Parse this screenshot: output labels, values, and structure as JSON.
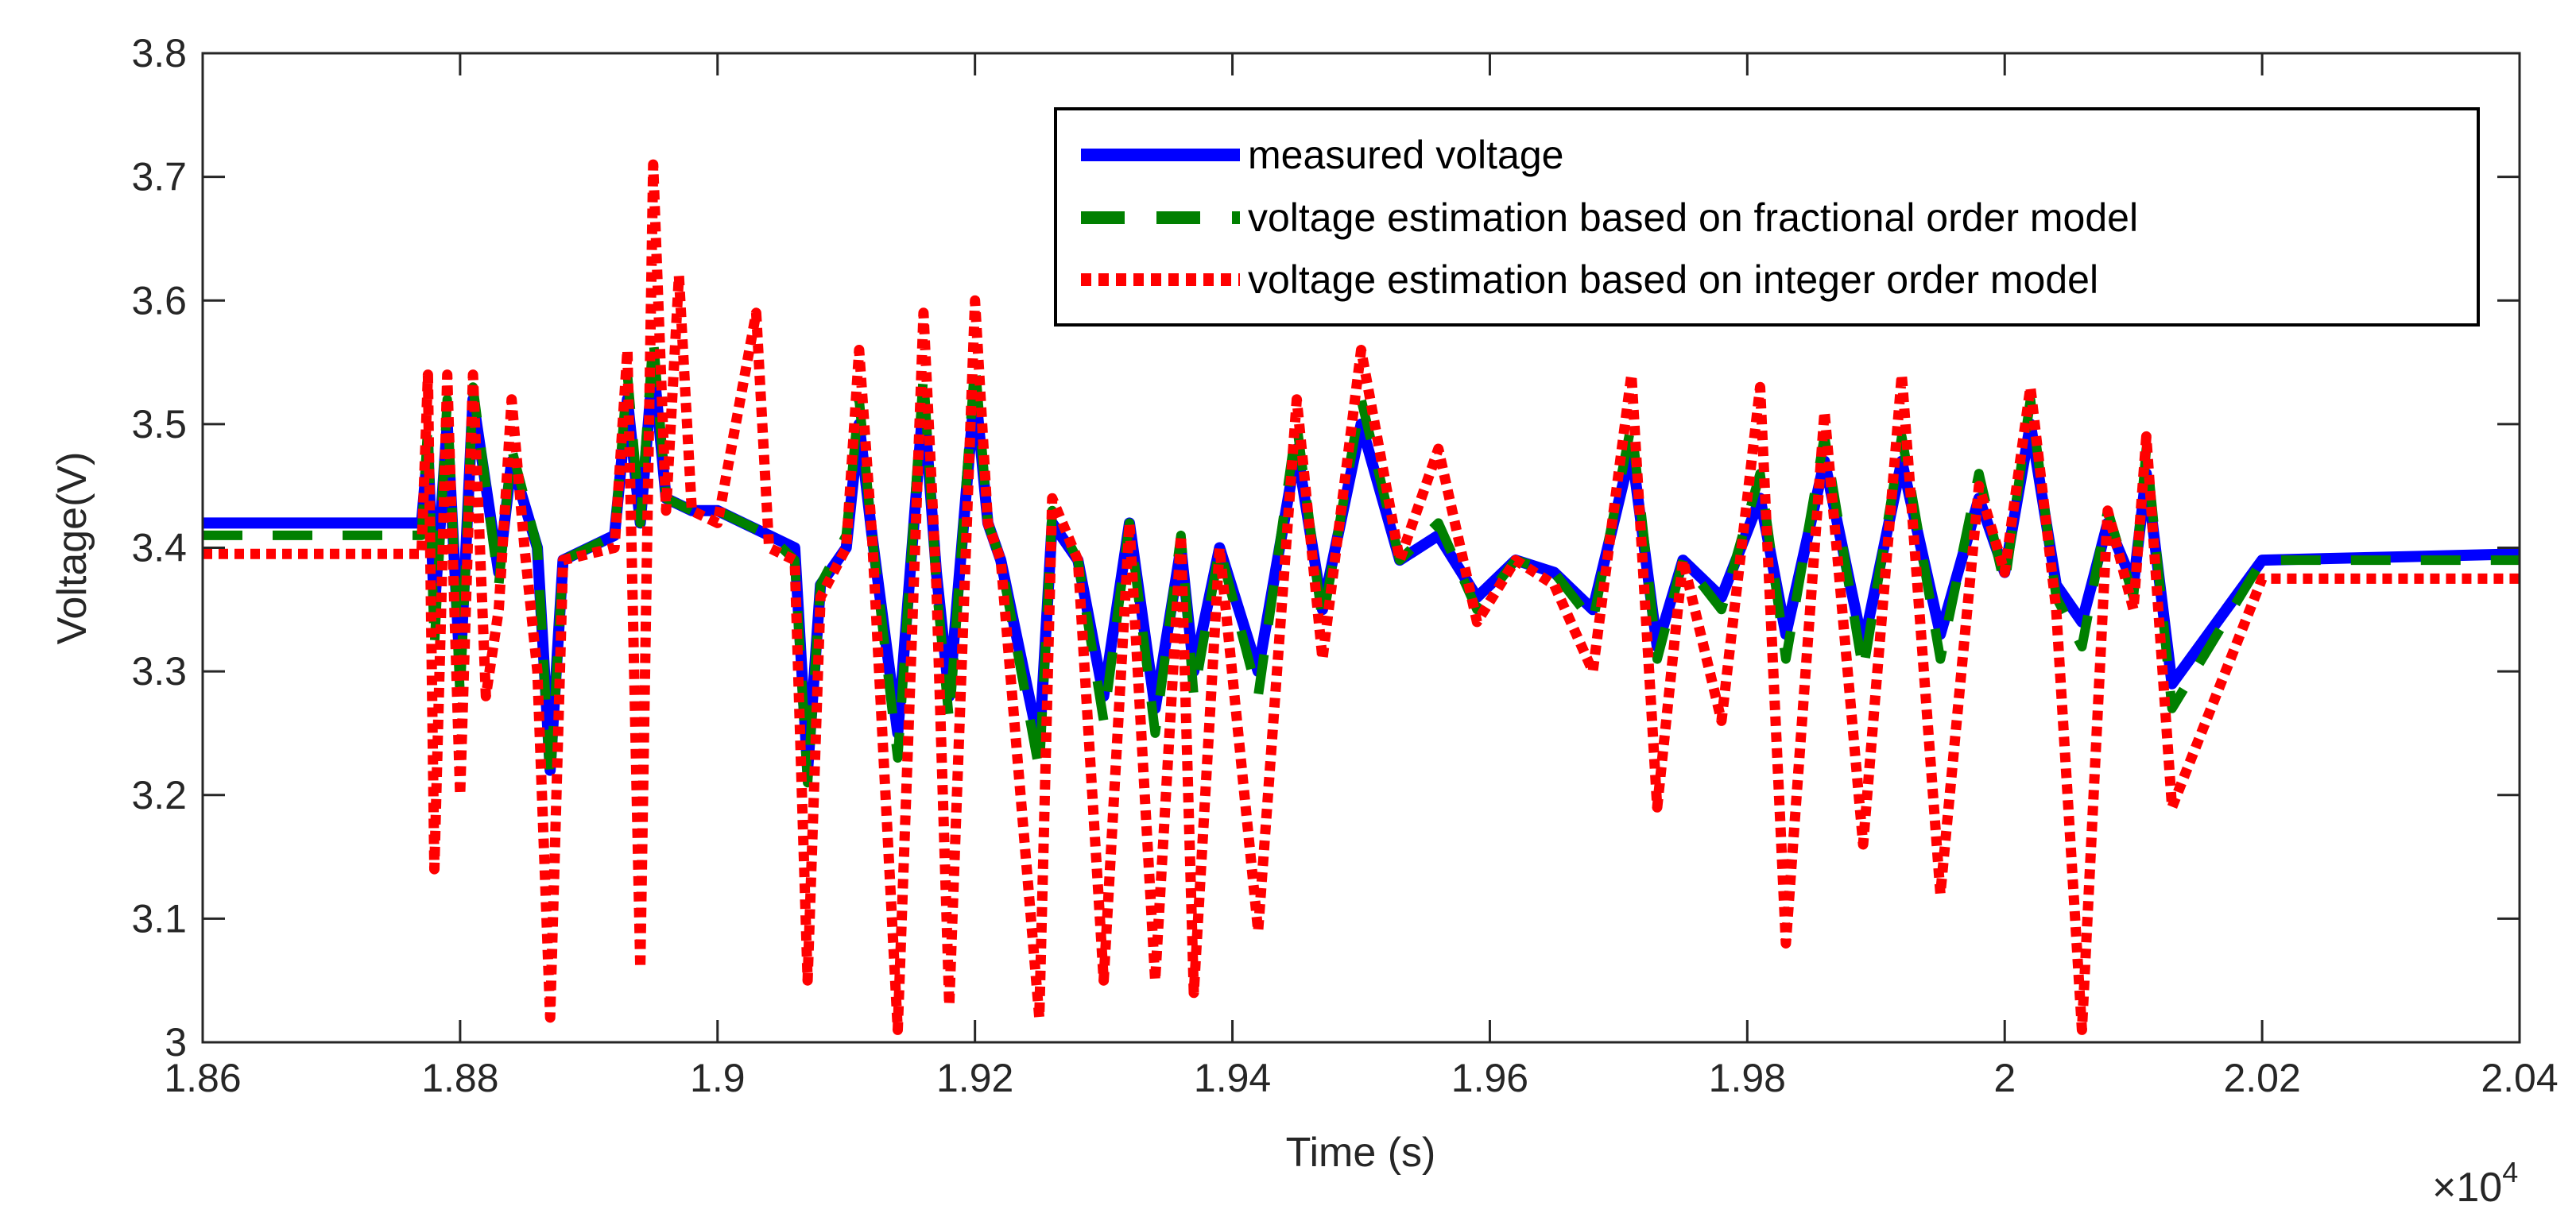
{
  "chart_data": {
    "type": "line",
    "xlabel": "Time (s)",
    "ylabel": "Voltage(V)",
    "x_exponent_label": "×10",
    "x_exponent_power": "4",
    "xlim": [
      1.86,
      2.04
    ],
    "ylim": [
      3.0,
      3.8
    ],
    "x_ticks": [
      1.86,
      1.88,
      1.9,
      1.92,
      1.94,
      1.96,
      1.98,
      2.0,
      2.02,
      2.04
    ],
    "x_tick_labels": [
      "1.86",
      "1.88",
      "1.9",
      "1.92",
      "1.94",
      "1.96",
      "1.98",
      "2",
      "2.02",
      "2.04"
    ],
    "y_ticks": [
      3.0,
      3.1,
      3.2,
      3.3,
      3.4,
      3.5,
      3.6,
      3.7,
      3.8
    ],
    "y_tick_labels": [
      "3",
      "3.1",
      "3.2",
      "3.3",
      "3.4",
      "3.5",
      "3.6",
      "3.7",
      "3.8"
    ],
    "grid": false,
    "legend_position": "top-right",
    "series": [
      {
        "name": "measured voltage",
        "color": "#0000ff",
        "style": "solid",
        "x": [
          1.86,
          1.877,
          1.8775,
          1.878,
          1.879,
          1.88,
          1.881,
          1.883,
          1.884,
          1.886,
          1.887,
          1.888,
          1.892,
          1.893,
          1.894,
          1.895,
          1.896,
          1.898,
          1.9,
          1.902,
          1.904,
          1.906,
          1.907,
          1.908,
          1.91,
          1.911,
          1.912,
          1.914,
          1.916,
          1.917,
          1.918,
          1.92,
          1.921,
          1.922,
          1.925,
          1.926,
          1.928,
          1.93,
          1.932,
          1.934,
          1.936,
          1.937,
          1.939,
          1.942,
          1.945,
          1.947,
          1.95,
          1.953,
          1.956,
          1.959,
          1.962,
          1.965,
          1.968,
          1.971,
          1.973,
          1.975,
          1.978,
          1.981,
          1.983,
          1.986,
          1.989,
          1.992,
          1.995,
          1.998,
          2.0,
          2.002,
          2.004,
          2.006,
          2.008,
          2.01,
          2.011,
          2.013,
          2.02,
          2.04
        ],
        "y": [
          3.42,
          3.42,
          3.48,
          3.35,
          3.5,
          3.3,
          3.52,
          3.38,
          3.47,
          3.4,
          3.22,
          3.39,
          3.41,
          3.52,
          3.42,
          3.55,
          3.44,
          3.43,
          3.43,
          3.42,
          3.41,
          3.4,
          3.22,
          3.37,
          3.4,
          3.5,
          3.41,
          3.25,
          3.52,
          3.38,
          3.28,
          3.53,
          3.42,
          3.39,
          3.24,
          3.42,
          3.39,
          3.28,
          3.42,
          3.27,
          3.4,
          3.3,
          3.4,
          3.3,
          3.48,
          3.35,
          3.5,
          3.39,
          3.41,
          3.36,
          3.39,
          3.38,
          3.35,
          3.48,
          3.32,
          3.39,
          3.36,
          3.44,
          3.33,
          3.47,
          3.32,
          3.47,
          3.33,
          3.44,
          3.38,
          3.5,
          3.37,
          3.34,
          3.42,
          3.37,
          3.46,
          3.29,
          3.39,
          3.395
        ]
      },
      {
        "name": "voltage estimation based on fractional order model",
        "color": "#008000",
        "style": "dashed",
        "x": [
          1.86,
          1.877,
          1.8775,
          1.878,
          1.879,
          1.88,
          1.881,
          1.883,
          1.884,
          1.886,
          1.887,
          1.888,
          1.892,
          1.893,
          1.894,
          1.895,
          1.896,
          1.898,
          1.9,
          1.902,
          1.904,
          1.906,
          1.907,
          1.908,
          1.91,
          1.911,
          1.912,
          1.914,
          1.916,
          1.917,
          1.918,
          1.92,
          1.921,
          1.922,
          1.925,
          1.926,
          1.928,
          1.93,
          1.932,
          1.934,
          1.936,
          1.937,
          1.939,
          1.942,
          1.945,
          1.947,
          1.95,
          1.953,
          1.956,
          1.959,
          1.962,
          1.965,
          1.968,
          1.971,
          1.973,
          1.975,
          1.978,
          1.981,
          1.983,
          1.986,
          1.989,
          1.992,
          1.995,
          1.998,
          2.0,
          2.002,
          2.004,
          2.006,
          2.008,
          2.01,
          2.011,
          2.013,
          2.02,
          2.04
        ],
        "y": [
          3.41,
          3.41,
          3.5,
          3.32,
          3.52,
          3.28,
          3.53,
          3.37,
          3.48,
          3.4,
          3.21,
          3.39,
          3.41,
          3.54,
          3.42,
          3.57,
          3.44,
          3.43,
          3.43,
          3.42,
          3.41,
          3.39,
          3.21,
          3.37,
          3.41,
          3.52,
          3.41,
          3.23,
          3.54,
          3.37,
          3.26,
          3.55,
          3.42,
          3.39,
          3.22,
          3.43,
          3.39,
          3.26,
          3.42,
          3.25,
          3.41,
          3.28,
          3.4,
          3.28,
          3.5,
          3.34,
          3.52,
          3.39,
          3.42,
          3.35,
          3.39,
          3.38,
          3.34,
          3.5,
          3.31,
          3.39,
          3.35,
          3.46,
          3.31,
          3.49,
          3.3,
          3.49,
          3.31,
          3.46,
          3.37,
          3.52,
          3.36,
          3.32,
          3.43,
          3.36,
          3.48,
          3.27,
          3.39,
          3.39
        ]
      },
      {
        "name": "voltage estimation based on integer order model",
        "color": "#ff0000",
        "style": "dotted",
        "x": [
          1.86,
          1.877,
          1.8775,
          1.878,
          1.879,
          1.88,
          1.881,
          1.882,
          1.883,
          1.884,
          1.885,
          1.886,
          1.887,
          1.888,
          1.892,
          1.893,
          1.894,
          1.895,
          1.896,
          1.897,
          1.898,
          1.9,
          1.903,
          1.904,
          1.906,
          1.907,
          1.908,
          1.91,
          1.911,
          1.912,
          1.914,
          1.916,
          1.917,
          1.918,
          1.92,
          1.921,
          1.922,
          1.925,
          1.926,
          1.928,
          1.93,
          1.932,
          1.934,
          1.936,
          1.937,
          1.939,
          1.942,
          1.945,
          1.947,
          1.95,
          1.953,
          1.956,
          1.959,
          1.962,
          1.965,
          1.968,
          1.971,
          1.973,
          1.975,
          1.978,
          1.981,
          1.983,
          1.986,
          1.989,
          1.992,
          1.995,
          1.998,
          2.0,
          2.002,
          2.004,
          2.006,
          2.008,
          2.01,
          2.011,
          2.013,
          2.02,
          2.04
        ],
        "y": [
          3.395,
          3.395,
          3.54,
          3.14,
          3.54,
          3.2,
          3.54,
          3.28,
          3.35,
          3.52,
          3.4,
          3.3,
          3.02,
          3.39,
          3.4,
          3.56,
          3.06,
          3.71,
          3.43,
          3.62,
          3.43,
          3.42,
          3.59,
          3.4,
          3.39,
          3.05,
          3.36,
          3.4,
          3.56,
          3.41,
          3.01,
          3.59,
          3.37,
          3.03,
          3.6,
          3.42,
          3.39,
          3.02,
          3.44,
          3.39,
          3.05,
          3.42,
          3.05,
          3.41,
          3.04,
          3.4,
          3.09,
          3.52,
          3.31,
          3.56,
          3.39,
          3.48,
          3.34,
          3.39,
          3.37,
          3.3,
          3.54,
          3.19,
          3.39,
          3.26,
          3.53,
          3.08,
          3.51,
          3.16,
          3.54,
          3.12,
          3.45,
          3.38,
          3.53,
          3.35,
          3.01,
          3.43,
          3.35,
          3.49,
          3.19,
          3.375,
          3.375
        ]
      }
    ]
  }
}
